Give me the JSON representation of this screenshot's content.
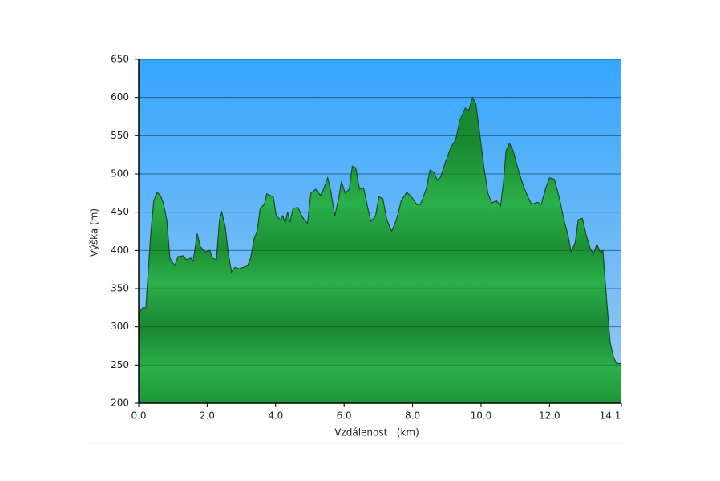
{
  "chart_data": {
    "type": "area",
    "xlabel": "Vzdálenost   (km)",
    "ylabel": "Výška (m)",
    "x": [
      0,
      0.12,
      0.21,
      0.26,
      0.35,
      0.44,
      0.54,
      0.63,
      0.72,
      0.82,
      0.91,
      1.05,
      1.15,
      1.29,
      1.4,
      1.52,
      1.59,
      1.71,
      1.8,
      1.94,
      2.08,
      2.15,
      2.27,
      2.36,
      2.43,
      2.53,
      2.62,
      2.71,
      2.81,
      2.92,
      3.06,
      3.18,
      3.27,
      3.37,
      3.46,
      3.55,
      3.67,
      3.74,
      3.93,
      4.02,
      4.14,
      4.21,
      4.28,
      4.35,
      4.42,
      4.51,
      4.65,
      4.79,
      4.93,
      5.03,
      5.17,
      5.31,
      5.4,
      5.52,
      5.61,
      5.73,
      5.85,
      5.92,
      6.03,
      6.15,
      6.24,
      6.34,
      6.45,
      6.57,
      6.67,
      6.78,
      6.92,
      7.02,
      7.13,
      7.25,
      7.39,
      7.53,
      7.67,
      7.83,
      7.97,
      8.12,
      8.23,
      8.4,
      8.51,
      8.63,
      8.72,
      8.82,
      8.96,
      9.12,
      9.26,
      9.38,
      9.54,
      9.64,
      9.75,
      9.85,
      9.94,
      10.08,
      10.2,
      10.31,
      10.45,
      10.57,
      10.66,
      10.73,
      10.83,
      10.94,
      11.09,
      11.23,
      11.37,
      11.48,
      11.65,
      11.76,
      11.88,
      12.0,
      12.14,
      12.28,
      12.42,
      12.54,
      12.63,
      12.75,
      12.84,
      12.96,
      13.07,
      13.19,
      13.28,
      13.38,
      13.49,
      13.56,
      13.66,
      13.77,
      13.87,
      13.96,
      14.1
    ],
    "series": [
      {
        "color": "#22a640",
        "values": [
          318,
          325,
          325,
          360,
          420,
          465,
          476,
          472,
          462,
          440,
          390,
          380,
          392,
          393,
          388,
          390,
          386,
          422,
          405,
          398,
          400,
          390,
          388,
          440,
          450,
          430,
          395,
          372,
          378,
          376,
          378,
          380,
          390,
          415,
          425,
          455,
          460,
          474,
          470,
          445,
          440,
          445,
          436,
          450,
          437,
          455,
          456,
          443,
          435,
          475,
          480,
          472,
          480,
          495,
          478,
          445,
          470,
          490,
          475,
          480,
          510,
          508,
          480,
          482,
          460,
          438,
          445,
          470,
          468,
          440,
          425,
          440,
          465,
          476,
          470,
          460,
          460,
          480,
          505,
          502,
          492,
          496,
          515,
          535,
          545,
          570,
          586,
          583,
          600,
          592,
          560,
          510,
          475,
          462,
          465,
          458,
          490,
          530,
          540,
          530,
          505,
          485,
          470,
          460,
          463,
          460,
          480,
          495,
          493,
          470,
          440,
          420,
          398,
          410,
          440,
          442,
          420,
          403,
          395,
          408,
          397,
          400,
          340,
          280,
          260,
          252,
          252
        ]
      }
    ],
    "xlim": [
      0,
      14.1
    ],
    "xticks": [
      {
        "value": 0,
        "label": "0.0"
      },
      {
        "value": 2,
        "label": "2.0"
      },
      {
        "value": 4,
        "label": "4.0"
      },
      {
        "value": 6,
        "label": "6.0"
      },
      {
        "value": 8,
        "label": "8.0"
      },
      {
        "value": 10,
        "label": "10.0"
      },
      {
        "value": 12,
        "label": "12.0"
      },
      14.1
    ],
    "ylim": [
      200,
      650
    ],
    "yticks": [
      200,
      250,
      300,
      350,
      400,
      450,
      500,
      550,
      600,
      650
    ],
    "grid": true,
    "background_color": "#3aa8ff"
  }
}
